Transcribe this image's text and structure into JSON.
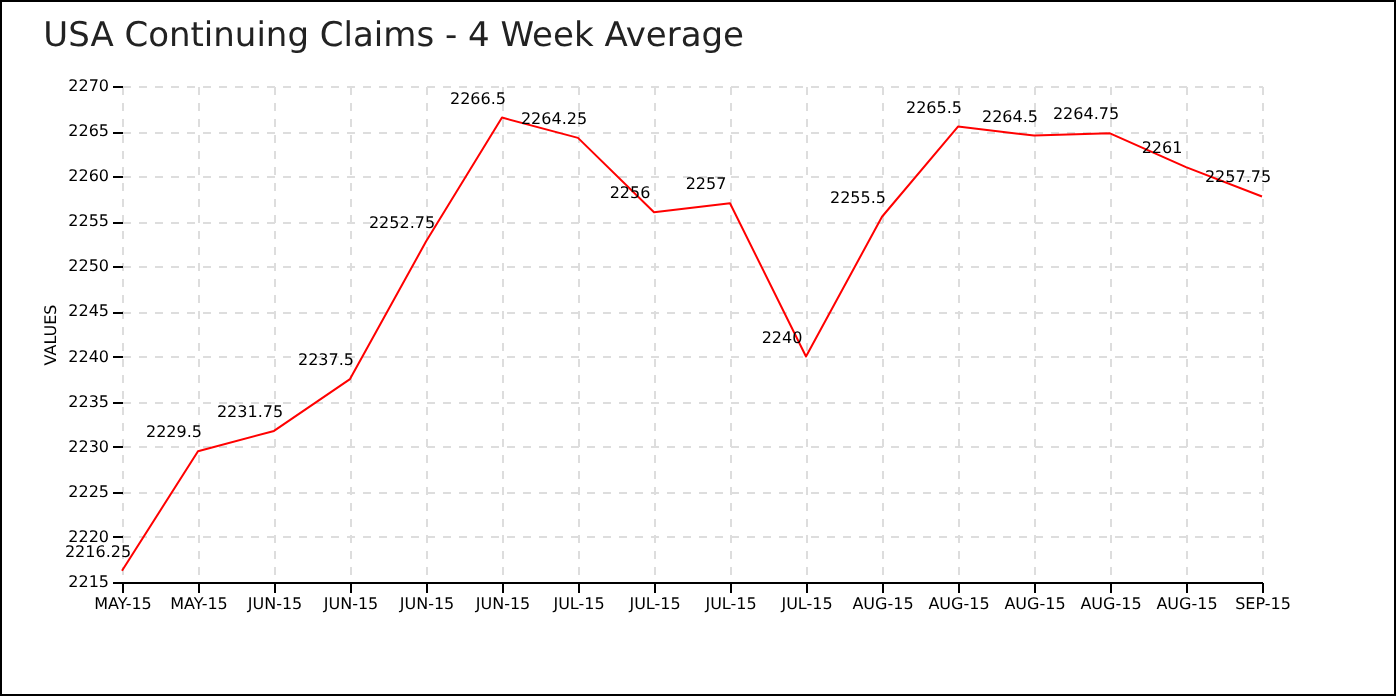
{
  "chart_data": {
    "type": "line",
    "title": "USA Continuing Claims - 4 Week Average",
    "ylabel": "VALUES",
    "categories": [
      "MAY-15",
      "MAY-15",
      "JUN-15",
      "JUN-15",
      "JUN-15",
      "JUN-15",
      "JUL-15",
      "JUL-15",
      "JUL-15",
      "JUL-15",
      "AUG-15",
      "AUG-15",
      "AUG-15",
      "AUG-15",
      "AUG-15",
      "SEP-15"
    ],
    "series": [
      {
        "color": "#ff0000",
        "values": [
          2216.25,
          2229.5,
          2231.75,
          2237.5,
          2252.75,
          2266.5,
          2264.25,
          2256,
          2257,
          2240,
          2255.5,
          2265.5,
          2264.5,
          2264.75,
          2261,
          2257.75
        ]
      }
    ],
    "ylim": [
      2215,
      2270
    ],
    "yticks": [
      2215,
      2220,
      2225,
      2230,
      2235,
      2240,
      2245,
      2250,
      2255,
      2260,
      2265,
      2270
    ],
    "grid": true,
    "data_labels": true,
    "marker": "none"
  }
}
